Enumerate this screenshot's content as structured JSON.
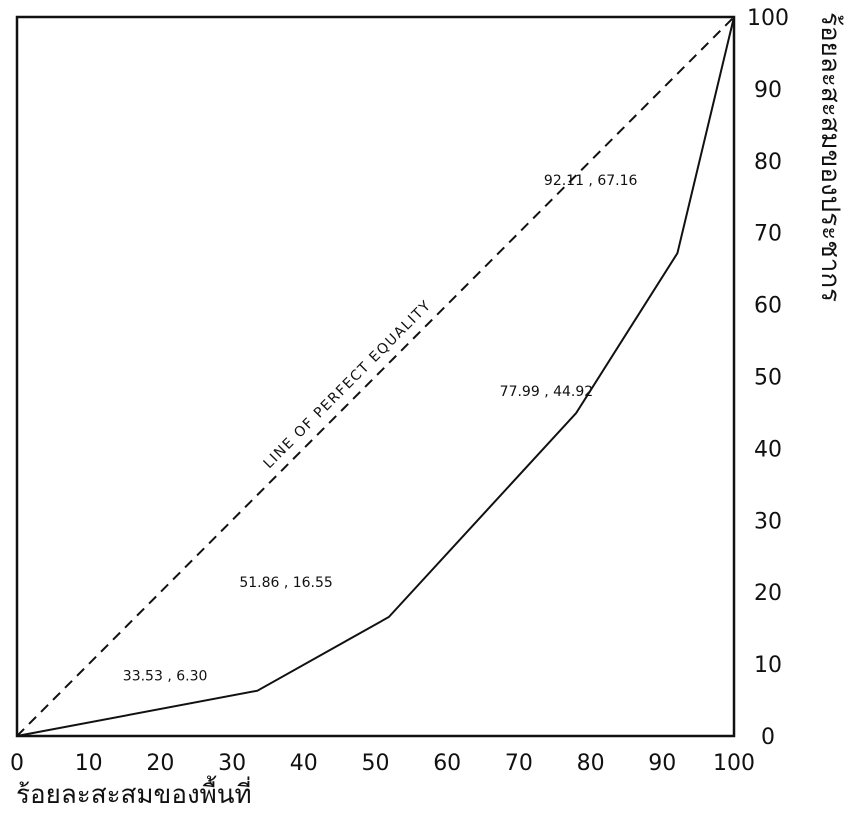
{
  "chart_data": {
    "type": "line",
    "title": "",
    "xlabel": "ร้อยละสะสมของพื้นที่",
    "ylabel": "ร้อยละสะสมของประชากร",
    "xlim": [
      0,
      100
    ],
    "ylim": [
      0,
      100
    ],
    "x_ticks": [
      "0",
      "10",
      "20",
      "30",
      "40",
      "50",
      "60",
      "70",
      "80",
      "90",
      "100"
    ],
    "y_ticks": [
      "0",
      "10",
      "20",
      "30",
      "40",
      "50",
      "60",
      "70",
      "80",
      "90",
      "100"
    ],
    "grid": false,
    "series": [
      {
        "style": "solid",
        "points": [
          {
            "x": 0,
            "y": 0
          },
          {
            "x": 33.53,
            "y": 6.3,
            "label": "33.53 , 6.30"
          },
          {
            "x": 51.86,
            "y": 16.55,
            "label": "51.86 , 16.55"
          },
          {
            "x": 77.99,
            "y": 44.92,
            "label": "77.99 , 44.92"
          },
          {
            "x": 92.11,
            "y": 67.16,
            "label": "92.11 , 67.16"
          },
          {
            "x": 100,
            "y": 100
          }
        ]
      },
      {
        "style": "dashed",
        "label": "LINE OF PERFECT EQUALITY",
        "points": [
          {
            "x": 0,
            "y": 0
          },
          {
            "x": 100,
            "y": 100
          }
        ]
      }
    ]
  }
}
